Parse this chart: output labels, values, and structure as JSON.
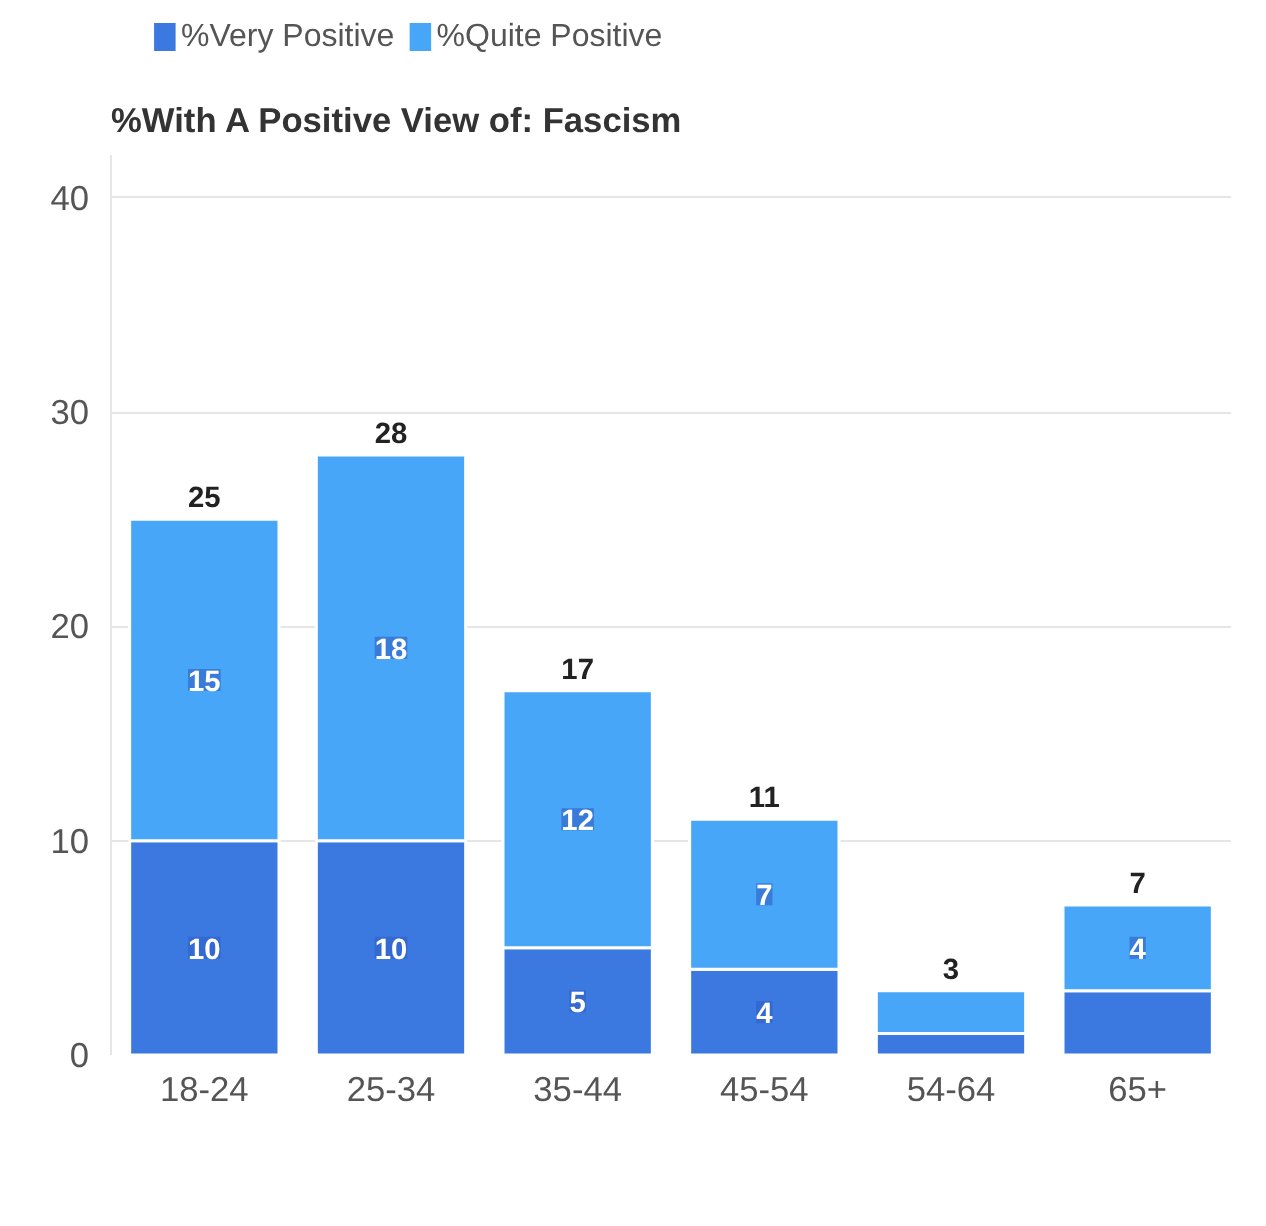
{
  "chart_data": {
    "type": "bar",
    "title": "%With A Positive View of: Fascism",
    "stacked": true,
    "categories": [
      "18-24",
      "25-34",
      "35-44",
      "45-54",
      "54-64",
      "65+"
    ],
    "series": [
      {
        "name": "%Very Positive",
        "color": "#3b78e0",
        "values": [
          10,
          10,
          5,
          4,
          1,
          3
        ],
        "value_labels": [
          "10",
          "10",
          "5",
          "4",
          null,
          null
        ]
      },
      {
        "name": "%Quite Positive",
        "color": "#47a6f7",
        "values": [
          15,
          18,
          12,
          7,
          2,
          4
        ],
        "value_labels": [
          "15",
          "18",
          "12",
          "7",
          null,
          "4"
        ]
      }
    ],
    "totals": [
      "25",
      "28",
      "17",
      "11",
      "3",
      "7"
    ],
    "ylim": [
      0,
      42
    ],
    "yticks": [
      0,
      10,
      20,
      30,
      40
    ],
    "grid": "y",
    "legend": "top left"
  }
}
